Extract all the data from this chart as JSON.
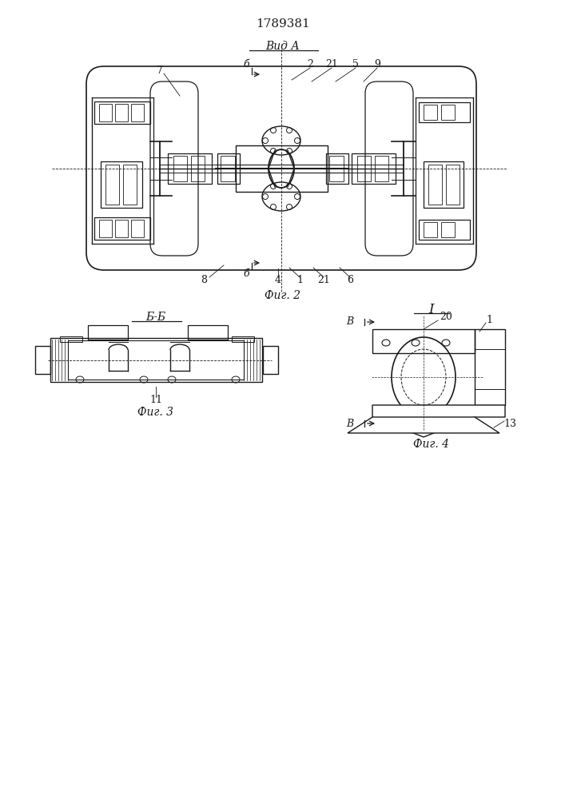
{
  "title": "1789381",
  "bg_color": "#ffffff",
  "line_color": "#1a1a1a",
  "fig2_label": "Фиг. 2",
  "fig3_label": "Фиг. 3",
  "fig4_label": "Фиг. 4",
  "vid_a_label": "Вид А",
  "bb_label": "Б-Б"
}
